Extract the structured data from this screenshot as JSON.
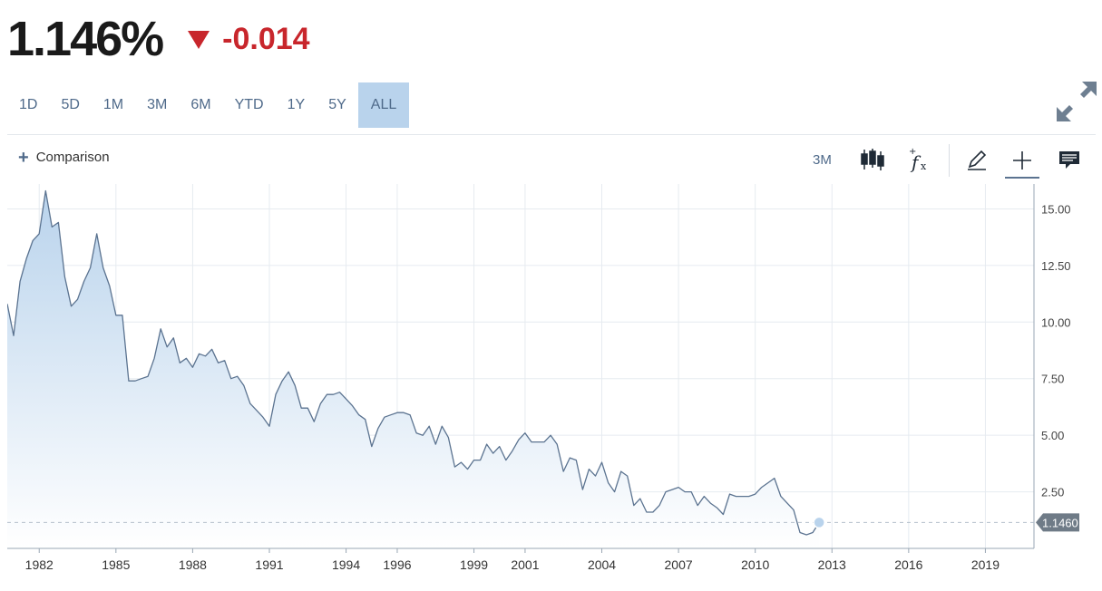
{
  "quote": {
    "price": "1.146%",
    "change": "-0.014",
    "direction": "down",
    "change_color": "#c8262c"
  },
  "range_tabs": [
    {
      "label": "1D"
    },
    {
      "label": "5D"
    },
    {
      "label": "1M"
    },
    {
      "label": "3M"
    },
    {
      "label": "6M"
    },
    {
      "label": "YTD"
    },
    {
      "label": "1Y"
    },
    {
      "label": "5Y"
    },
    {
      "label": "ALL",
      "active": true
    }
  ],
  "toolbar": {
    "comparison_label": "Comparison",
    "interval_label": "3M",
    "tools": [
      "candlestick-icon",
      "function-icon",
      "pencil-icon",
      "crosshair-icon",
      "comment-icon"
    ]
  },
  "icons": {
    "expand": "expand-arrows-icon",
    "comparison": "plus-icon"
  },
  "chart_data": {
    "type": "area",
    "title": "",
    "xlabel": "",
    "ylabel": "",
    "x_start": 1980.75,
    "x_step": 0.25,
    "xlim": [
      1980.75,
      2020.9
    ],
    "ylim": [
      0,
      16.1
    ],
    "x_ticks": [
      "1982",
      "1985",
      "1988",
      "1991",
      "1994",
      "1996",
      "1999",
      "2001",
      "2004",
      "2007",
      "2010",
      "2013",
      "2016",
      "2019"
    ],
    "y_ticks": [
      "2.50",
      "5.00",
      "7.50",
      "10.00",
      "12.50",
      "15.00"
    ],
    "grid": true,
    "line_color": "#5b7390",
    "fill_color": "#b9d3ec",
    "last_value_label": "1.1460",
    "last_value": 1.146,
    "series": [
      {
        "values": [
          10.8,
          9.4,
          11.8,
          12.8,
          13.6,
          13.9,
          15.8,
          14.2,
          14.4,
          12.0,
          10.7,
          11.0,
          11.8,
          12.4,
          13.9,
          12.4,
          11.6,
          10.3,
          10.3,
          7.4,
          7.4,
          7.5,
          7.6,
          8.4,
          9.7,
          8.9,
          9.3,
          8.2,
          8.4,
          8.0,
          8.6,
          8.5,
          8.8,
          8.2,
          8.3,
          7.5,
          7.6,
          7.2,
          6.4,
          6.1,
          5.8,
          5.4,
          6.8,
          7.4,
          7.8,
          7.2,
          6.2,
          6.2,
          5.6,
          6.4,
          6.8,
          6.8,
          6.9,
          6.6,
          6.3,
          5.9,
          5.7,
          4.5,
          5.3,
          5.8,
          5.9,
          6.0,
          6.0,
          5.9,
          5.1,
          5.0,
          5.4,
          4.6,
          5.4,
          4.9,
          3.6,
          3.8,
          3.5,
          3.9,
          3.9,
          4.6,
          4.2,
          4.5,
          3.9,
          4.3,
          4.8,
          5.1,
          4.7,
          4.7,
          4.7,
          5.0,
          4.6,
          3.4,
          4.0,
          3.9,
          2.6,
          3.5,
          3.2,
          3.8,
          2.9,
          2.5,
          3.4,
          3.2,
          1.9,
          2.2,
          1.6,
          1.6,
          1.9,
          2.5,
          2.6,
          2.7,
          2.5,
          2.5,
          1.9,
          2.3,
          2.0,
          1.8,
          1.5,
          2.4,
          2.3,
          2.3,
          2.3,
          2.4,
          2.7,
          2.9,
          3.1,
          2.3,
          2.0,
          1.7,
          0.7,
          0.6,
          0.7,
          1.146
        ]
      }
    ]
  }
}
